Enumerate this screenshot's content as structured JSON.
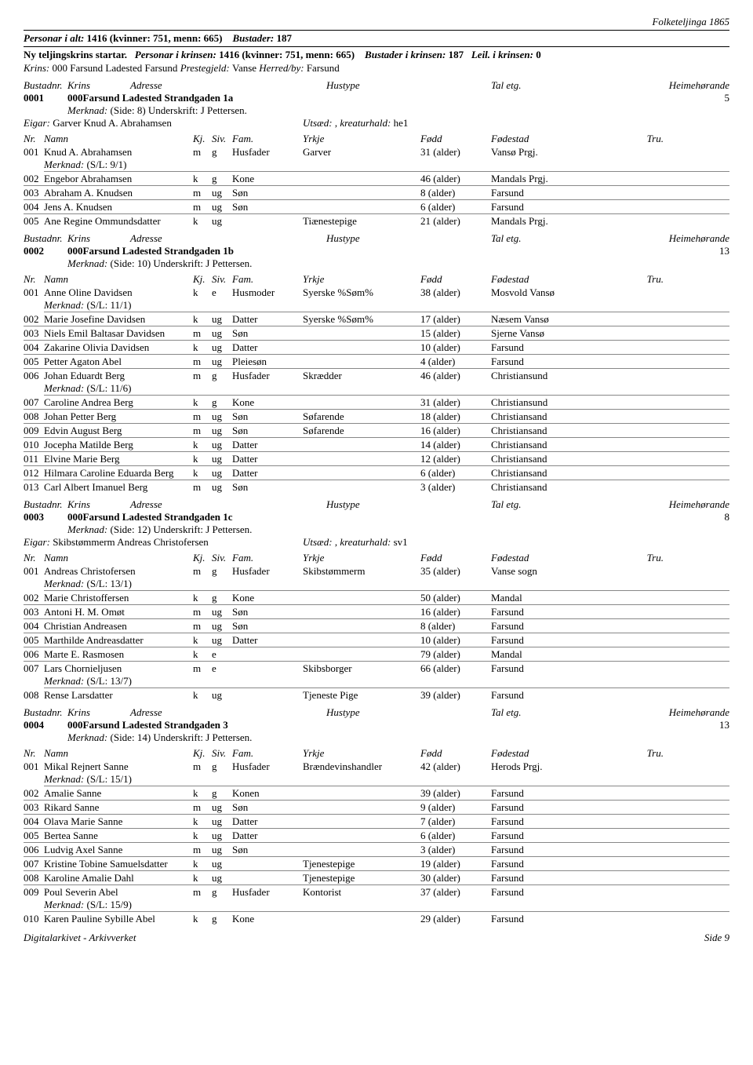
{
  "header": {
    "topRight": "Folketeljinga 1865",
    "line1_a": "Personar i alt:",
    "line1_b": "1416 (kvinner: 751, menn: 665)",
    "line1_c": "Bustader:",
    "line1_d": "187",
    "line2_a": "Ny teljingskrins startar.",
    "line2_b": "Personar i krinsen:",
    "line2_c": "1416 (kvinner: 751, menn: 665)",
    "line2_d": "Bustader i krinsen:",
    "line2_e": "187",
    "line2_f": "Leil. i krinsen:",
    "line2_g": "0",
    "krins_a": "Krins:",
    "krins_b": "000 Farsund Ladested Farsund",
    "krins_c": "Prestegjeld:",
    "krins_d": "Vanse",
    "krins_e": "Herred/by:",
    "krins_f": "Farsund"
  },
  "labels": {
    "bustadnr": "Bustadnr.",
    "krins": "Krins",
    "adresse": "Adresse",
    "hustype": "Hustype",
    "taletg": "Tal etg.",
    "heim": "Heimehørande",
    "merknad": "Merknad:",
    "eigar": "Eigar:",
    "utsaed": "Utsæd:",
    "kreatur": "kreaturhald:",
    "nr": "Nr.",
    "namn": "Namn",
    "kj": "Kj.",
    "siv": "Siv.",
    "fam": "Fam.",
    "yrkje": "Yrkje",
    "fodd": "Fødd",
    "fodestad": "Fødestad",
    "tru": "Tru."
  },
  "blocks": [
    {
      "nr": "0001",
      "krins": "000",
      "adresse": "Farsund Ladested Strandgaden 1a",
      "heim": "5",
      "merknad": "(Side: 8) Underskrift: J Pettersen.",
      "eigar": "Garver Knud A. Abrahamsen",
      "utsaed": " , ",
      "kreatur": "he1",
      "people": [
        {
          "nr": "001",
          "namn": "Knud A. Abrahamsen",
          "kj": "m",
          "siv": "g",
          "fam": "Husfader",
          "yrkje": "Garver",
          "fodd": "31 (alder)",
          "sted": "Vansø Prgj.",
          "sm": "(S/L: 9/1)"
        },
        {
          "nr": "002",
          "namn": "Engebor Abrahamsen",
          "kj": "k",
          "siv": "g",
          "fam": "Kone",
          "yrkje": "",
          "fodd": "46 (alder)",
          "sted": "Mandals Prgj."
        },
        {
          "nr": "003",
          "namn": "Abraham A. Knudsen",
          "kj": "m",
          "siv": "ug",
          "fam": "Søn",
          "yrkje": "",
          "fodd": "8 (alder)",
          "sted": "Farsund"
        },
        {
          "nr": "004",
          "namn": "Jens A. Knudsen",
          "kj": "m",
          "siv": "ug",
          "fam": "Søn",
          "yrkje": "",
          "fodd": "6 (alder)",
          "sted": "Farsund"
        },
        {
          "nr": "005",
          "namn": "Ane Regine Ommundsdatter",
          "kj": "k",
          "siv": "ug",
          "fam": "",
          "yrkje": "Tiænestepige",
          "fodd": "21 (alder)",
          "sted": "Mandals Prgj."
        }
      ]
    },
    {
      "nr": "0002",
      "krins": "000",
      "adresse": "Farsund Ladested Strandgaden 1b",
      "heim": "13",
      "merknad": "(Side: 10) Underskrift: J Pettersen.",
      "people": [
        {
          "nr": "001",
          "namn": "Anne Oline Davidsen",
          "kj": "k",
          "siv": "e",
          "fam": "Husmoder",
          "yrkje": "Syerske %Søm%",
          "fodd": "38 (alder)",
          "sted": "Mosvold Vansø",
          "sm": "(S/L: 11/1)"
        },
        {
          "nr": "002",
          "namn": "Marie Josefine Davidsen",
          "kj": "k",
          "siv": "ug",
          "fam": "Datter",
          "yrkje": "Syerske %Søm%",
          "fodd": "17 (alder)",
          "sted": "Næsem Vansø"
        },
        {
          "nr": "003",
          "namn": "Niels Emil Baltasar Davidsen",
          "kj": "m",
          "siv": "ug",
          "fam": "Søn",
          "yrkje": "",
          "fodd": "15 (alder)",
          "sted": "Sjerne Vansø"
        },
        {
          "nr": "004",
          "namn": "Zakarine Olivia Davidsen",
          "kj": "k",
          "siv": "ug",
          "fam": "Datter",
          "yrkje": "",
          "fodd": "10 (alder)",
          "sted": "Farsund"
        },
        {
          "nr": "005",
          "namn": "Petter Agaton Abel",
          "kj": "m",
          "siv": "ug",
          "fam": "Pleiesøn",
          "yrkje": "",
          "fodd": "4 (alder)",
          "sted": "Farsund"
        },
        {
          "nr": "006",
          "namn": "Johan Eduardt Berg",
          "kj": "m",
          "siv": "g",
          "fam": "Husfader",
          "yrkje": "Skrædder",
          "fodd": "46 (alder)",
          "sted": "Christiansund",
          "sm": "(S/L: 11/6)"
        },
        {
          "nr": "007",
          "namn": "Caroline Andrea Berg",
          "kj": "k",
          "siv": "g",
          "fam": "Kone",
          "yrkje": "",
          "fodd": "31 (alder)",
          "sted": "Christiansund"
        },
        {
          "nr": "008",
          "namn": "Johan Petter Berg",
          "kj": "m",
          "siv": "ug",
          "fam": "Søn",
          "yrkje": "Søfarende",
          "fodd": "18 (alder)",
          "sted": "Christiansand"
        },
        {
          "nr": "009",
          "namn": "Edvin August Berg",
          "kj": "m",
          "siv": "ug",
          "fam": "Søn",
          "yrkje": "Søfarende",
          "fodd": "16 (alder)",
          "sted": "Christiansand"
        },
        {
          "nr": "010",
          "namn": "Jocepha Matilde Berg",
          "kj": "k",
          "siv": "ug",
          "fam": "Datter",
          "yrkje": "",
          "fodd": "14 (alder)",
          "sted": "Christiansand"
        },
        {
          "nr": "011",
          "namn": "Elvine Marie Berg",
          "kj": "k",
          "siv": "ug",
          "fam": "Datter",
          "yrkje": "",
          "fodd": "12 (alder)",
          "sted": "Christiansand"
        },
        {
          "nr": "012",
          "namn": "Hilmara Caroline Eduarda Berg",
          "kj": "k",
          "siv": "ug",
          "fam": "Datter",
          "yrkje": "",
          "fodd": "6 (alder)",
          "sted": "Christiansand"
        },
        {
          "nr": "013",
          "namn": "Carl Albert Imanuel Berg",
          "kj": "m",
          "siv": "ug",
          "fam": "Søn",
          "yrkje": "",
          "fodd": "3 (alder)",
          "sted": "Christiansand"
        }
      ]
    },
    {
      "nr": "0003",
      "krins": "000",
      "adresse": "Farsund Ladested Strandgaden 1c",
      "heim": "8",
      "merknad": "(Side: 12) Underskrift: J Pettersen.",
      "eigar": "Skibstømmerm Andreas Christofersen",
      "utsaed": " , ",
      "kreatur": "sv1",
      "people": [
        {
          "nr": "001",
          "namn": "Andreas Christofersen",
          "kj": "m",
          "siv": "g",
          "fam": "Husfader",
          "yrkje": "Skibstømmerm",
          "fodd": "35 (alder)",
          "sted": "Vanse sogn",
          "sm": "(S/L: 13/1)"
        },
        {
          "nr": "002",
          "namn": "Marie Christoffersen",
          "kj": "k",
          "siv": "g",
          "fam": "Kone",
          "yrkje": "",
          "fodd": "50 (alder)",
          "sted": "Mandal"
        },
        {
          "nr": "003",
          "namn": "Antoni H. M. Omøt",
          "kj": "m",
          "siv": "ug",
          "fam": "Søn",
          "yrkje": "",
          "fodd": "16 (alder)",
          "sted": "Farsund"
        },
        {
          "nr": "004",
          "namn": "Christian Andreasen",
          "kj": "m",
          "siv": "ug",
          "fam": "Søn",
          "yrkje": "",
          "fodd": "8 (alder)",
          "sted": "Farsund"
        },
        {
          "nr": "005",
          "namn": "Marthilde Andreasdatter",
          "kj": "k",
          "siv": "ug",
          "fam": "Datter",
          "yrkje": "",
          "fodd": "10 (alder)",
          "sted": "Farsund"
        },
        {
          "nr": "006",
          "namn": "Marte E. Rasmosen",
          "kj": "k",
          "siv": "e",
          "fam": "",
          "yrkje": "",
          "fodd": "79 (alder)",
          "sted": "Mandal"
        },
        {
          "nr": "007",
          "namn": "Lars Chornieljusen",
          "kj": "m",
          "siv": "e",
          "fam": "",
          "yrkje": "Skibsborger",
          "fodd": "66 (alder)",
          "sted": "Farsund",
          "sm": "(S/L: 13/7)"
        },
        {
          "nr": "008",
          "namn": "Rense Larsdatter",
          "kj": "k",
          "siv": "ug",
          "fam": "",
          "yrkje": "Tjeneste Pige",
          "fodd": "39 (alder)",
          "sted": "Farsund"
        }
      ]
    },
    {
      "nr": "0004",
      "krins": "000",
      "adresse": "Farsund Ladested Strandgaden 3",
      "heim": "13",
      "merknad": "(Side: 14) Underskrift: J Pettersen.",
      "people": [
        {
          "nr": "001",
          "namn": "Mikal Rejnert Sanne",
          "kj": "m",
          "siv": "g",
          "fam": "Husfader",
          "yrkje": "Brændevinshandler",
          "fodd": "42 (alder)",
          "sted": "Herods Prgj.",
          "sm": "(S/L: 15/1)"
        },
        {
          "nr": "002",
          "namn": "Amalie Sanne",
          "kj": "k",
          "siv": "g",
          "fam": "Konen",
          "yrkje": "",
          "fodd": "39 (alder)",
          "sted": "Farsund"
        },
        {
          "nr": "003",
          "namn": "Rikard Sanne",
          "kj": "m",
          "siv": "ug",
          "fam": "Søn",
          "yrkje": "",
          "fodd": "9 (alder)",
          "sted": "Farsund"
        },
        {
          "nr": "004",
          "namn": "Olava Marie Sanne",
          "kj": "k",
          "siv": "ug",
          "fam": "Datter",
          "yrkje": "",
          "fodd": "7 (alder)",
          "sted": "Farsund"
        },
        {
          "nr": "005",
          "namn": "Bertea Sanne",
          "kj": "k",
          "siv": "ug",
          "fam": "Datter",
          "yrkje": "",
          "fodd": "6 (alder)",
          "sted": "Farsund"
        },
        {
          "nr": "006",
          "namn": "Ludvig Axel Sanne",
          "kj": "m",
          "siv": "ug",
          "fam": "Søn",
          "yrkje": "",
          "fodd": "3 (alder)",
          "sted": "Farsund"
        },
        {
          "nr": "007",
          "namn": "Kristine Tobine Samuelsdatter",
          "kj": "k",
          "siv": "ug",
          "fam": "",
          "yrkje": "Tjenestepige",
          "fodd": "19 (alder)",
          "sted": "Farsund"
        },
        {
          "nr": "008",
          "namn": "Karoline Amalie Dahl",
          "kj": "k",
          "siv": "ug",
          "fam": "",
          "yrkje": "Tjenestepige",
          "fodd": "30 (alder)",
          "sted": "Farsund"
        },
        {
          "nr": "009",
          "namn": "Poul Severin Abel",
          "kj": "m",
          "siv": "g",
          "fam": "Husfader",
          "yrkje": "Kontorist",
          "fodd": "37 (alder)",
          "sted": "Farsund",
          "sm": "(S/L: 15/9)"
        },
        {
          "nr": "010",
          "namn": "Karen Pauline Sybille Abel",
          "kj": "k",
          "siv": "g",
          "fam": "Kone",
          "yrkje": "",
          "fodd": "29 (alder)",
          "sted": "Farsund"
        }
      ]
    }
  ],
  "footer": {
    "left": "Digitalarkivet - Arkivverket",
    "right": "Side 9"
  }
}
